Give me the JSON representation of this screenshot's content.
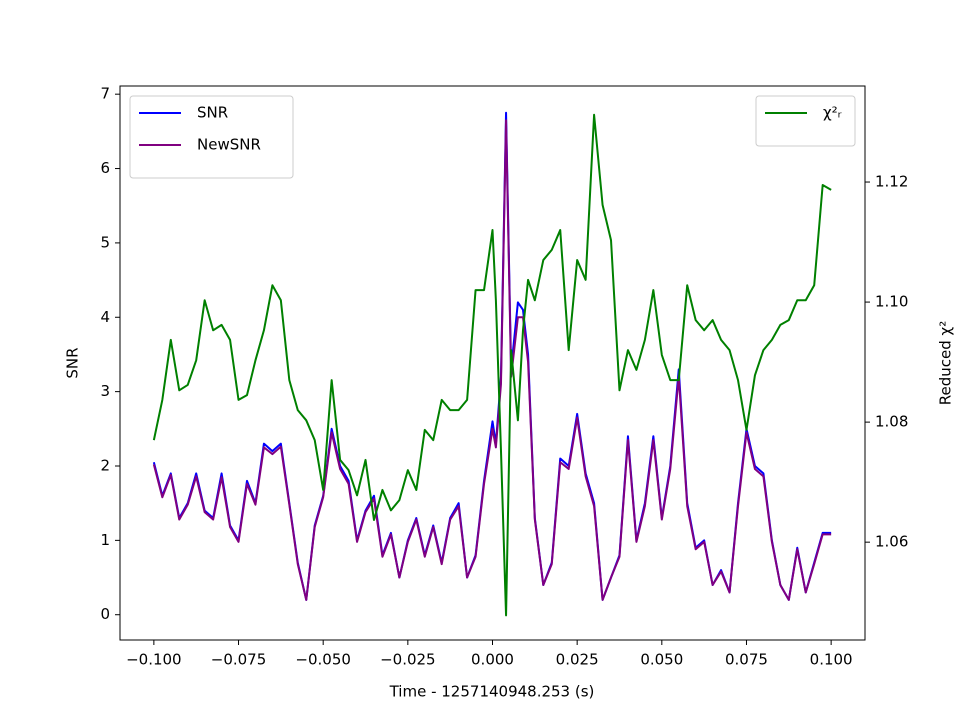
{
  "chart_data": {
    "type": "line",
    "xlabel": "Time - 1257140948.253 (s)",
    "ylabel": "SNR",
    "y2label": "Reduced χ²",
    "x": [
      -0.1,
      -0.0975,
      -0.095,
      -0.0925,
      -0.09,
      -0.0875,
      -0.085,
      -0.0825,
      -0.08,
      -0.0775,
      -0.075,
      -0.0725,
      -0.07,
      -0.0675,
      -0.065,
      -0.0625,
      -0.06,
      -0.0575,
      -0.055,
      -0.0525,
      -0.05,
      -0.0475,
      -0.045,
      -0.0425,
      -0.04,
      -0.0375,
      -0.035,
      -0.0325,
      -0.03,
      -0.0275,
      -0.025,
      -0.0225,
      -0.02,
      -0.0175,
      -0.015,
      -0.0125,
      -0.01,
      -0.0075,
      -0.005,
      -0.0025,
      0,
      0.001,
      0.0025,
      0.004,
      0.0055,
      0.0075,
      0.009,
      0.0105,
      0.0125,
      0.015,
      0.0175,
      0.02,
      0.0225,
      0.025,
      0.0275,
      0.03,
      0.0325,
      0.035,
      0.0375,
      0.04,
      0.0425,
      0.045,
      0.0475,
      0.05,
      0.0525,
      0.055,
      0.0575,
      0.06,
      0.0625,
      0.065,
      0.0675,
      0.07,
      0.0725,
      0.075,
      0.0775,
      0.08,
      0.0825,
      0.085,
      0.0875,
      0.09,
      0.0925,
      0.095,
      0.0975,
      0.1
    ],
    "series": [
      {
        "name": "SNR",
        "color": "#0000ff",
        "values": [
          2.05,
          1.6,
          1.9,
          1.3,
          1.5,
          1.9,
          1.4,
          1.3,
          1.9,
          1.2,
          1.0,
          1.8,
          1.5,
          2.3,
          2.2,
          2.3,
          1.5,
          0.7,
          0.2,
          1.2,
          1.6,
          2.5,
          2.0,
          1.8,
          1.0,
          1.4,
          1.6,
          0.8,
          1.1,
          0.5,
          1.0,
          1.3,
          0.8,
          1.2,
          0.7,
          1.3,
          1.5,
          0.5,
          0.8,
          1.8,
          2.6,
          2.3,
          3.2,
          6.75,
          3.3,
          4.2,
          4.1,
          3.5,
          1.3,
          0.4,
          0.7,
          2.1,
          2.0,
          2.7,
          1.9,
          1.5,
          0.2,
          0.5,
          0.8,
          2.4,
          1.0,
          1.5,
          2.4,
          1.3,
          2.0,
          3.3,
          1.5,
          0.9,
          1.0,
          0.4,
          0.6,
          0.3,
          1.5,
          2.5,
          2.0,
          1.9,
          1.0,
          0.4,
          0.2,
          0.9,
          0.3,
          0.7,
          1.1,
          1.1
        ]
      },
      {
        "name": "NewSNR",
        "color": "#800080",
        "values": [
          2.02,
          1.58,
          1.88,
          1.28,
          1.48,
          1.86,
          1.38,
          1.28,
          1.85,
          1.18,
          0.98,
          1.76,
          1.48,
          2.25,
          2.16,
          2.26,
          1.48,
          0.68,
          0.2,
          1.18,
          1.58,
          2.45,
          1.96,
          1.76,
          0.98,
          1.38,
          1.56,
          0.78,
          1.08,
          0.5,
          0.98,
          1.28,
          0.78,
          1.18,
          0.68,
          1.28,
          1.46,
          0.5,
          0.78,
          1.76,
          2.5,
          2.25,
          3.1,
          6.65,
          3.2,
          4.0,
          4.0,
          3.4,
          1.28,
          0.4,
          0.68,
          2.05,
          1.96,
          2.65,
          1.86,
          1.46,
          0.2,
          0.5,
          0.78,
          2.35,
          0.98,
          1.46,
          2.35,
          1.28,
          1.96,
          3.2,
          1.46,
          0.88,
          0.98,
          0.4,
          0.58,
          0.3,
          1.46,
          2.45,
          1.96,
          1.86,
          0.98,
          0.4,
          0.2,
          0.88,
          0.3,
          0.68,
          1.08,
          1.08
        ]
      },
      {
        "name": "χ²ᵣ",
        "color": "#008000",
        "axis": "y2",
        "values": [
          1.077,
          1.0837,
          1.0937,
          1.0853,
          1.0862,
          1.0903,
          1.1003,
          1.0953,
          1.0962,
          1.0937,
          1.0837,
          1.0845,
          1.0903,
          1.0953,
          1.1028,
          1.1003,
          1.087,
          1.082,
          1.0803,
          1.077,
          1.0687,
          1.087,
          1.0737,
          1.072,
          1.0678,
          1.0737,
          1.0637,
          1.0687,
          1.0653,
          1.067,
          1.072,
          1.0687,
          1.0787,
          1.077,
          1.0837,
          1.082,
          1.082,
          1.0837,
          1.102,
          1.102,
          1.112,
          1.1003,
          1.0753,
          1.0478,
          1.092,
          1.0803,
          1.0953,
          1.1037,
          1.1003,
          1.107,
          1.1087,
          1.112,
          1.092,
          1.107,
          1.1037,
          1.1312,
          1.1162,
          1.1103,
          1.0853,
          1.092,
          1.0887,
          1.0937,
          1.102,
          1.0912,
          1.087,
          1.087,
          1.1028,
          1.097,
          1.0953,
          1.097,
          1.0937,
          1.092,
          1.087,
          1.0787,
          1.0878,
          1.092,
          1.0937,
          1.0962,
          1.097,
          1.1003,
          1.1003,
          1.1028,
          1.1195,
          1.1187
        ]
      }
    ],
    "xlim": [
      -0.11,
      0.11
    ],
    "ylim": [
      -0.34,
      7.11
    ],
    "y2lim": [
      1.0437,
      1.136
    ],
    "xticks": [
      {
        "value": -0.1,
        "label": "−0.100"
      },
      {
        "value": -0.075,
        "label": "−0.075"
      },
      {
        "value": -0.05,
        "label": "−0.050"
      },
      {
        "value": -0.025,
        "label": "−0.025"
      },
      {
        "value": 0,
        "label": "0.000"
      },
      {
        "value": 0.025,
        "label": "0.025"
      },
      {
        "value": 0.05,
        "label": "0.050"
      },
      {
        "value": 0.075,
        "label": "0.075"
      },
      {
        "value": 0.1,
        "label": "0.100"
      }
    ],
    "yticks": [
      0,
      1,
      2,
      3,
      4,
      5,
      6,
      7
    ],
    "y2ticks": [
      1.06,
      1.08,
      {
        "value": 1.1,
        "label": "1.10"
      },
      1.12
    ],
    "grid": false,
    "legend": "upper left",
    "y2legend": "upper right"
  }
}
